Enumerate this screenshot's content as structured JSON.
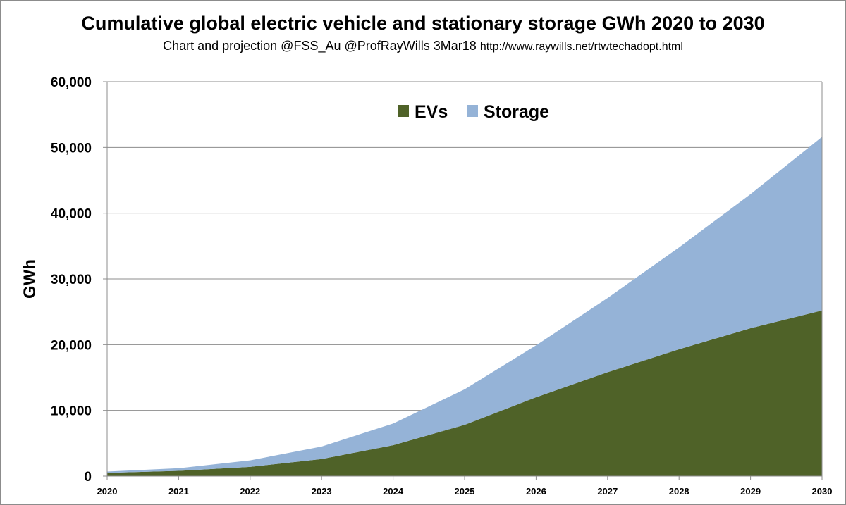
{
  "chart_data": {
    "type": "area",
    "stacked": true,
    "title": "Cumulative global electric vehicle and stationary storage GWh 2020 to 2030",
    "subtitle": "Chart and projection  @FSS_Au @ProfRayWills 3Mar18",
    "subtitle_url": "http://www.raywills.net/rtwtechadopt.html",
    "xlabel": "",
    "ylabel": "GWh",
    "x": [
      "2020",
      "2021",
      "2022",
      "2023",
      "2024",
      "2025",
      "2026",
      "2027",
      "2028",
      "2029",
      "2030"
    ],
    "ylim": [
      0,
      60000
    ],
    "yticks": [
      0,
      10000,
      20000,
      30000,
      40000,
      50000,
      60000
    ],
    "ytick_labels": [
      "0",
      "10,000",
      "20,000",
      "30,000",
      "40,000",
      "50,000",
      "60,000"
    ],
    "grid": true,
    "legend_position": "top-center",
    "series": [
      {
        "name": "EVs",
        "color": "#4f6228",
        "values": [
          500,
          800,
          1400,
          2600,
          4700,
          7800,
          12000,
          15800,
          19300,
          22500,
          25200
        ]
      },
      {
        "name": "Storage",
        "color": "#95b3d7",
        "values": [
          200,
          400,
          1000,
          1900,
          3300,
          5400,
          7900,
          11300,
          15500,
          20400,
          26400
        ]
      }
    ]
  }
}
